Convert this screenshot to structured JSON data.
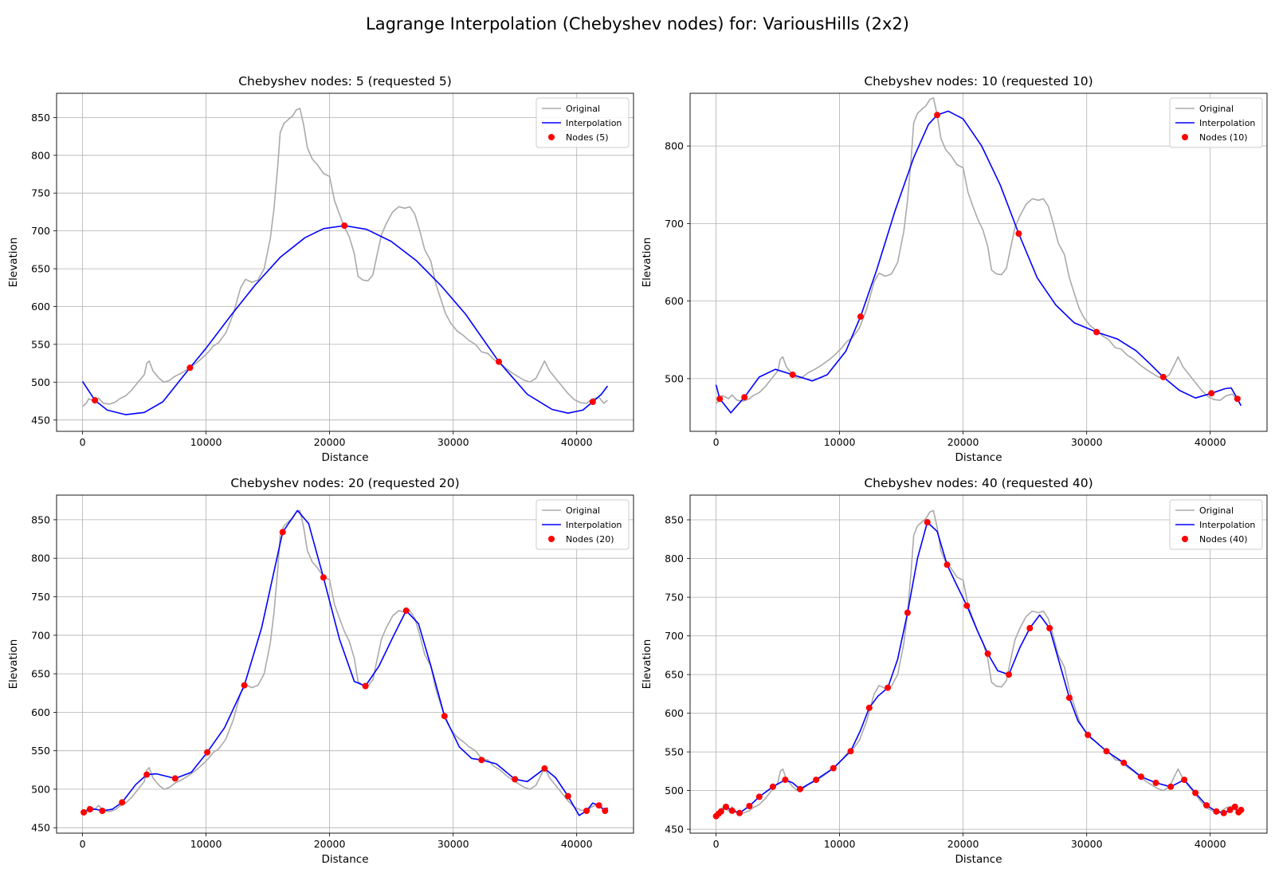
{
  "suptitle": "Lagrange Interpolation (Chebyshev nodes) for: VariousHills (2x2)",
  "colors": {
    "original": "#aaaaaa",
    "interpolation": "#0000ff",
    "nodes": "#ff0000",
    "grid": "#b0b0b0"
  },
  "legend_labels": {
    "original": "Original",
    "interpolation": "Interpolation"
  },
  "chart_data": [
    {
      "type": "line",
      "title": "Chebyshev nodes: 5 (requested 5)",
      "xlabel": "Distance",
      "ylabel": "Elevation",
      "xlim": [
        -2100,
        44600
      ],
      "ylim": [
        435,
        882
      ],
      "xticks": [
        0,
        10000,
        20000,
        30000,
        40000
      ],
      "yticks": [
        450,
        500,
        550,
        600,
        650,
        700,
        750,
        800,
        850
      ],
      "grid": true,
      "legend_position": "top-right",
      "nodes_label": "Nodes (5)",
      "nodes": [
        [
          1000,
          476
        ],
        [
          8700,
          519
        ],
        [
          21200,
          707
        ],
        [
          33700,
          527
        ],
        [
          41300,
          474
        ]
      ],
      "interpolation": [
        [
          0,
          501
        ],
        [
          1000,
          476
        ],
        [
          2000,
          463
        ],
        [
          3500,
          457
        ],
        [
          5000,
          460
        ],
        [
          6500,
          474
        ],
        [
          8700,
          519
        ],
        [
          10000,
          545
        ],
        [
          12000,
          588
        ],
        [
          14000,
          629
        ],
        [
          16000,
          665
        ],
        [
          18000,
          691
        ],
        [
          19500,
          703
        ],
        [
          21200,
          707
        ],
        [
          23000,
          702
        ],
        [
          25000,
          686
        ],
        [
          27000,
          661
        ],
        [
          29000,
          628
        ],
        [
          31000,
          590
        ],
        [
          33700,
          527
        ],
        [
          36000,
          484
        ],
        [
          38000,
          464
        ],
        [
          39300,
          459
        ],
        [
          40500,
          463
        ],
        [
          41300,
          474
        ],
        [
          42000,
          484
        ],
        [
          42500,
          495
        ]
      ]
    },
    {
      "type": "line",
      "title": "Chebyshev nodes: 10 (requested 10)",
      "xlabel": "Distance",
      "ylabel": "Elevation",
      "xlim": [
        -2100,
        44600
      ],
      "ylim": [
        432,
        868
      ],
      "xticks": [
        0,
        10000,
        20000,
        30000,
        40000
      ],
      "yticks": [
        500,
        600,
        700,
        800
      ],
      "grid": true,
      "legend_position": "top-right",
      "nodes_label": "Nodes (10)",
      "nodes": [
        [
          300,
          474
        ],
        [
          2300,
          476
        ],
        [
          6200,
          505
        ],
        [
          11700,
          580
        ],
        [
          17900,
          840
        ],
        [
          24500,
          687
        ],
        [
          30800,
          560
        ],
        [
          36200,
          502
        ],
        [
          40100,
          481
        ],
        [
          42200,
          474
        ]
      ],
      "interpolation": [
        [
          0,
          492
        ],
        [
          300,
          474
        ],
        [
          1200,
          456
        ],
        [
          2300,
          476
        ],
        [
          3500,
          502
        ],
        [
          4800,
          512
        ],
        [
          6200,
          505
        ],
        [
          7800,
          497
        ],
        [
          9000,
          505
        ],
        [
          10500,
          535
        ],
        [
          11700,
          580
        ],
        [
          13000,
          640
        ],
        [
          14500,
          717
        ],
        [
          16000,
          785
        ],
        [
          17200,
          828
        ],
        [
          17900,
          840
        ],
        [
          18800,
          845
        ],
        [
          20000,
          835
        ],
        [
          21500,
          800
        ],
        [
          23000,
          750
        ],
        [
          24500,
          687
        ],
        [
          26000,
          630
        ],
        [
          27500,
          595
        ],
        [
          29000,
          572
        ],
        [
          30800,
          560
        ],
        [
          32500,
          551
        ],
        [
          34000,
          536
        ],
        [
          35200,
          518
        ],
        [
          36200,
          502
        ],
        [
          37500,
          485
        ],
        [
          38800,
          475
        ],
        [
          40100,
          481
        ],
        [
          41200,
          487
        ],
        [
          41700,
          488
        ],
        [
          42200,
          474
        ],
        [
          42500,
          465
        ]
      ]
    },
    {
      "type": "line",
      "title": "Chebyshev nodes: 20 (requested 20)",
      "xlabel": "Distance",
      "ylabel": "Elevation",
      "xlim": [
        -2100,
        44600
      ],
      "ylim": [
        443,
        882
      ],
      "xticks": [
        0,
        10000,
        20000,
        30000,
        40000
      ],
      "yticks": [
        450,
        500,
        550,
        600,
        650,
        700,
        750,
        800,
        850
      ],
      "grid": true,
      "legend_position": "top-right",
      "nodes_label": "Nodes (20)",
      "nodes": [
        [
          100,
          470
        ],
        [
          600,
          474
        ],
        [
          1600,
          472
        ],
        [
          3200,
          483
        ],
        [
          5200,
          519
        ],
        [
          7500,
          514
        ],
        [
          10100,
          548
        ],
        [
          13100,
          635
        ],
        [
          16200,
          834
        ],
        [
          19500,
          775
        ],
        [
          22900,
          634
        ],
        [
          26200,
          732
        ],
        [
          29300,
          595
        ],
        [
          32300,
          538
        ],
        [
          35000,
          513
        ],
        [
          37400,
          527
        ],
        [
          39300,
          491
        ],
        [
          40800,
          472
        ],
        [
          41800,
          479
        ],
        [
          42300,
          472
        ]
      ],
      "interpolation": [
        [
          0,
          469
        ],
        [
          100,
          470
        ],
        [
          600,
          474
        ],
        [
          1100,
          474
        ],
        [
          1600,
          472
        ],
        [
          2400,
          474
        ],
        [
          3200,
          483
        ],
        [
          4300,
          506
        ],
        [
          5200,
          519
        ],
        [
          6000,
          520
        ],
        [
          7500,
          514
        ],
        [
          8800,
          522
        ],
        [
          10100,
          548
        ],
        [
          11500,
          580
        ],
        [
          13100,
          635
        ],
        [
          14500,
          710
        ],
        [
          16200,
          834
        ],
        [
          17400,
          862
        ],
        [
          18300,
          845
        ],
        [
          19500,
          775
        ],
        [
          20800,
          695
        ],
        [
          22000,
          640
        ],
        [
          22900,
          634
        ],
        [
          24000,
          660
        ],
        [
          25200,
          700
        ],
        [
          26200,
          732
        ],
        [
          27200,
          715
        ],
        [
          28200,
          660
        ],
        [
          29300,
          595
        ],
        [
          30500,
          555
        ],
        [
          31500,
          540
        ],
        [
          32300,
          538
        ],
        [
          33500,
          533
        ],
        [
          35000,
          513
        ],
        [
          36000,
          510
        ],
        [
          37000,
          522
        ],
        [
          37400,
          527
        ],
        [
          38300,
          515
        ],
        [
          39300,
          491
        ],
        [
          40200,
          466
        ],
        [
          40800,
          472
        ],
        [
          41300,
          482
        ],
        [
          41800,
          479
        ],
        [
          42300,
          472
        ],
        [
          42500,
          476
        ]
      ]
    },
    {
      "type": "line",
      "title": "Chebyshev nodes: 40 (requested 40)",
      "xlabel": "Distance",
      "ylabel": "Elevation",
      "xlim": [
        -2100,
        44600
      ],
      "ylim": [
        445,
        882
      ],
      "xticks": [
        0,
        10000,
        20000,
        30000,
        40000
      ],
      "yticks": [
        450,
        500,
        550,
        600,
        650,
        700,
        750,
        800,
        850
      ],
      "grid": true,
      "legend_position": "top-right",
      "nodes_label": "Nodes (40)",
      "nodes": [
        [
          0,
          467
        ],
        [
          200,
          470
        ],
        [
          400,
          473
        ],
        [
          800,
          479
        ],
        [
          1300,
          474
        ],
        [
          1900,
          471
        ],
        [
          2700,
          480
        ],
        [
          3500,
          492
        ],
        [
          4600,
          505
        ],
        [
          5600,
          514
        ],
        [
          6800,
          502
        ],
        [
          8100,
          514
        ],
        [
          9500,
          529
        ],
        [
          10900,
          551
        ],
        [
          12400,
          607
        ],
        [
          13900,
          633
        ],
        [
          15500,
          730
        ],
        [
          17100,
          847
        ],
        [
          18700,
          792
        ],
        [
          20300,
          739
        ],
        [
          22000,
          677
        ],
        [
          23700,
          650
        ],
        [
          25400,
          710
        ],
        [
          27000,
          710
        ],
        [
          28600,
          620
        ],
        [
          30100,
          572
        ],
        [
          31600,
          551
        ],
        [
          33000,
          536
        ],
        [
          34400,
          518
        ],
        [
          35600,
          510
        ],
        [
          36800,
          505
        ],
        [
          37900,
          514
        ],
        [
          38800,
          497
        ],
        [
          39700,
          481
        ],
        [
          40500,
          473
        ],
        [
          41100,
          471
        ],
        [
          41600,
          475
        ],
        [
          42000,
          479
        ],
        [
          42300,
          472
        ],
        [
          42500,
          475
        ]
      ],
      "interpolation": [
        [
          0,
          467
        ],
        [
          400,
          473
        ],
        [
          800,
          479
        ],
        [
          1300,
          474
        ],
        [
          1900,
          471
        ],
        [
          2700,
          480
        ],
        [
          3500,
          492
        ],
        [
          4600,
          505
        ],
        [
          5600,
          514
        ],
        [
          6200,
          510
        ],
        [
          6800,
          502
        ],
        [
          8100,
          514
        ],
        [
          9500,
          529
        ],
        [
          10900,
          551
        ],
        [
          11700,
          578
        ],
        [
          12400,
          607
        ],
        [
          13100,
          622
        ],
        [
          13900,
          633
        ],
        [
          14700,
          670
        ],
        [
          15500,
          730
        ],
        [
          16300,
          800
        ],
        [
          17100,
          847
        ],
        [
          17900,
          835
        ],
        [
          18700,
          792
        ],
        [
          19500,
          765
        ],
        [
          20300,
          739
        ],
        [
          21200,
          705
        ],
        [
          22000,
          677
        ],
        [
          22800,
          655
        ],
        [
          23700,
          650
        ],
        [
          24600,
          685
        ],
        [
          25400,
          710
        ],
        [
          26200,
          727
        ],
        [
          27000,
          710
        ],
        [
          27800,
          665
        ],
        [
          28600,
          620
        ],
        [
          29300,
          590
        ],
        [
          30100,
          572
        ],
        [
          31600,
          551
        ],
        [
          33000,
          536
        ],
        [
          34400,
          518
        ],
        [
          35600,
          510
        ],
        [
          36800,
          505
        ],
        [
          37900,
          514
        ],
        [
          38800,
          497
        ],
        [
          39700,
          481
        ],
        [
          40500,
          473
        ],
        [
          41100,
          471
        ],
        [
          41600,
          475
        ],
        [
          42000,
          479
        ],
        [
          42300,
          472
        ],
        [
          42500,
          475
        ]
      ]
    }
  ],
  "original_profile": [
    [
      0,
      468
    ],
    [
      300,
      472
    ],
    [
      500,
      478
    ],
    [
      800,
      476
    ],
    [
      1000,
      474
    ],
    [
      1300,
      479
    ],
    [
      1700,
      472
    ],
    [
      2200,
      471
    ],
    [
      2700,
      474
    ],
    [
      3000,
      478
    ],
    [
      3500,
      482
    ],
    [
      4000,
      490
    ],
    [
      4500,
      500
    ],
    [
      5000,
      510
    ],
    [
      5200,
      525
    ],
    [
      5400,
      528
    ],
    [
      5700,
      515
    ],
    [
      6200,
      505
    ],
    [
      6600,
      500
    ],
    [
      7000,
      502
    ],
    [
      7500,
      508
    ],
    [
      8000,
      512
    ],
    [
      8600,
      518
    ],
    [
      9200,
      525
    ],
    [
      9700,
      532
    ],
    [
      10200,
      540
    ],
    [
      10600,
      548
    ],
    [
      11000,
      552
    ],
    [
      11600,
      565
    ],
    [
      12200,
      590
    ],
    [
      12800,
      625
    ],
    [
      13200,
      636
    ],
    [
      13700,
      632
    ],
    [
      14200,
      635
    ],
    [
      14700,
      650
    ],
    [
      15200,
      690
    ],
    [
      15500,
      730
    ],
    [
      15800,
      785
    ],
    [
      16000,
      830
    ],
    [
      16300,
      842
    ],
    [
      16700,
      848
    ],
    [
      17000,
      852
    ],
    [
      17300,
      860
    ],
    [
      17600,
      862
    ],
    [
      17900,
      840
    ],
    [
      18200,
      810
    ],
    [
      18600,
      795
    ],
    [
      19000,
      788
    ],
    [
      19500,
      776
    ],
    [
      20000,
      772
    ],
    [
      20400,
      740
    ],
    [
      20800,
      722
    ],
    [
      21200,
      705
    ],
    [
      21600,
      692
    ],
    [
      22000,
      670
    ],
    [
      22300,
      640
    ],
    [
      22700,
      635
    ],
    [
      23100,
      634
    ],
    [
      23500,
      642
    ],
    [
      23800,
      665
    ],
    [
      24200,
      695
    ],
    [
      24600,
      710
    ],
    [
      25100,
      725
    ],
    [
      25600,
      732
    ],
    [
      26100,
      730
    ],
    [
      26500,
      732
    ],
    [
      26900,
      722
    ],
    [
      27300,
      700
    ],
    [
      27700,
      675
    ],
    [
      28200,
      660
    ],
    [
      28600,
      630
    ],
    [
      29000,
      610
    ],
    [
      29400,
      590
    ],
    [
      29800,
      578
    ],
    [
      30300,
      568
    ],
    [
      30800,
      562
    ],
    [
      31300,
      555
    ],
    [
      31800,
      550
    ],
    [
      32300,
      540
    ],
    [
      32800,
      538
    ],
    [
      33300,
      530
    ],
    [
      33800,
      525
    ],
    [
      34300,
      518
    ],
    [
      34800,
      512
    ],
    [
      35200,
      508
    ],
    [
      35700,
      503
    ],
    [
      36200,
      500
    ],
    [
      36700,
      505
    ],
    [
      37100,
      518
    ],
    [
      37400,
      528
    ],
    [
      37800,
      515
    ],
    [
      38300,
      505
    ],
    [
      38800,
      495
    ],
    [
      39300,
      485
    ],
    [
      39800,
      477
    ],
    [
      40300,
      473
    ],
    [
      40800,
      472
    ],
    [
      41300,
      478
    ],
    [
      41800,
      480
    ],
    [
      42200,
      472
    ],
    [
      42500,
      476
    ]
  ]
}
